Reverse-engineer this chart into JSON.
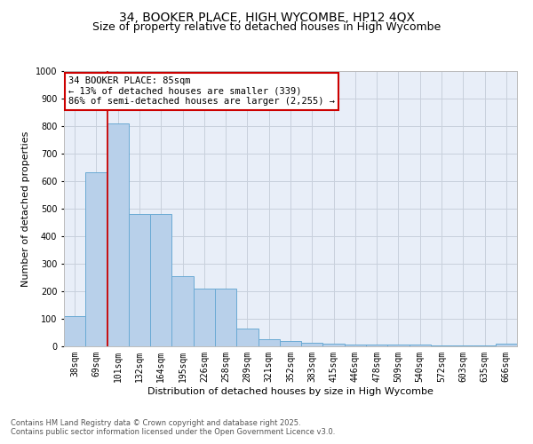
{
  "title1": "34, BOOKER PLACE, HIGH WYCOMBE, HP12 4QX",
  "title2": "Size of property relative to detached houses in High Wycombe",
  "xlabel": "Distribution of detached houses by size in High Wycombe",
  "ylabel": "Number of detached properties",
  "categories": [
    "38sqm",
    "69sqm",
    "101sqm",
    "132sqm",
    "164sqm",
    "195sqm",
    "226sqm",
    "258sqm",
    "289sqm",
    "321sqm",
    "352sqm",
    "383sqm",
    "415sqm",
    "446sqm",
    "478sqm",
    "509sqm",
    "540sqm",
    "572sqm",
    "603sqm",
    "635sqm",
    "666sqm"
  ],
  "values": [
    110,
    632,
    810,
    480,
    480,
    255,
    210,
    210,
    63,
    25,
    18,
    12,
    10,
    8,
    8,
    7,
    5,
    3,
    2,
    2,
    10
  ],
  "bar_color": "#b8d0ea",
  "bar_edge_color": "#6aaad4",
  "vline_color": "#cc0000",
  "annotation_line1": "34 BOOKER PLACE: 85sqm",
  "annotation_line2": "← 13% of detached houses are smaller (339)",
  "annotation_line3": "86% of semi-detached houses are larger (2,255) →",
  "annotation_box_color": "#cc0000",
  "ylim": [
    0,
    1000
  ],
  "yticks": [
    0,
    100,
    200,
    300,
    400,
    500,
    600,
    700,
    800,
    900,
    1000
  ],
  "grid_color": "#c8d0dc",
  "background_color": "#e8eef8",
  "footer1": "Contains HM Land Registry data © Crown copyright and database right 2025.",
  "footer2": "Contains public sector information licensed under the Open Government Licence v3.0.",
  "title1_fontsize": 10,
  "title2_fontsize": 9,
  "ylabel_fontsize": 8,
  "xlabel_fontsize": 8,
  "tick_fontsize": 7,
  "footer_fontsize": 6,
  "annot_fontsize": 7.5
}
